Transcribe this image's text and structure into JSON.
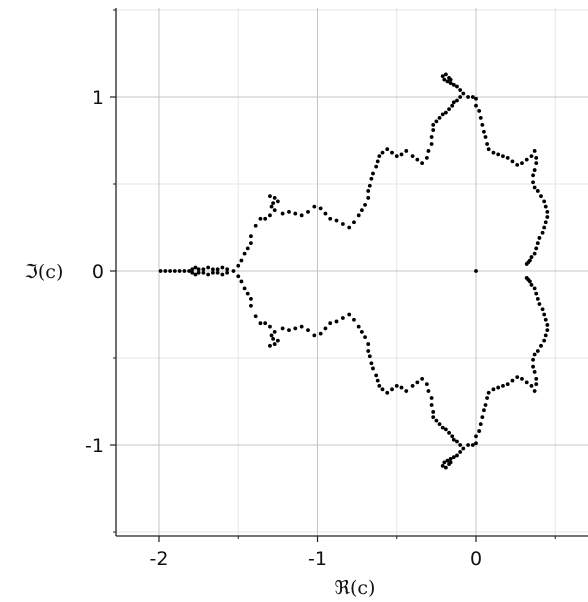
{
  "chart_data": {
    "type": "scatter",
    "title": "",
    "xlabel": "ℜ(c)",
    "ylabel": "ℑ(c)",
    "xlim": [
      -2.25,
      0.7
    ],
    "ylim": [
      -1.5,
      1.5
    ],
    "xticks": [
      -2,
      -1,
      0
    ],
    "yticks": [
      -1,
      0,
      1
    ],
    "xtick_labels": [
      "-2",
      "-1",
      "0"
    ],
    "ytick_labels": [
      "-1",
      "0",
      "1"
    ],
    "grid": true,
    "minor_grid": true,
    "point_color": "#000000",
    "description_of_points": "Scattered points tracing the boundary of the Mandelbrot set; symmetric about the real axis (each point (x, y) has a mirror (x, -y)).",
    "series": [
      {
        "values_upper_half": [
          [
            -1.99,
            0
          ],
          [
            -1.96,
            0
          ],
          [
            -1.93,
            0
          ],
          [
            -1.9,
            0
          ],
          [
            -1.87,
            0
          ],
          [
            -1.84,
            0
          ],
          [
            -1.81,
            0
          ],
          [
            -1.79,
            0.01
          ],
          [
            -1.77,
            0.02
          ],
          [
            -1.75,
            0.01
          ],
          [
            -1.72,
            0.01
          ],
          [
            -1.69,
            0.02
          ],
          [
            -1.66,
            0.01
          ],
          [
            -1.63,
            0.01
          ],
          [
            -1.6,
            0.02
          ],
          [
            -1.57,
            0.01
          ],
          [
            -1.53,
            0
          ],
          [
            -1.5,
            0.03
          ],
          [
            -1.48,
            0.06
          ],
          [
            -1.46,
            0.1
          ],
          [
            -1.44,
            0.13
          ],
          [
            -1.42,
            0.16
          ],
          [
            -1.42,
            0.2
          ],
          [
            -1.39,
            0.26
          ],
          [
            -1.36,
            0.3
          ],
          [
            -1.33,
            0.3
          ],
          [
            -1.3,
            0.32
          ],
          [
            -1.27,
            0.35
          ],
          [
            -1.28,
            0.39
          ],
          [
            -1.3,
            0.43
          ],
          [
            -1.27,
            0.42
          ],
          [
            -1.25,
            0.4
          ],
          [
            -1.29,
            0.37
          ],
          [
            -1.22,
            0.33
          ],
          [
            -1.18,
            0.34
          ],
          [
            -1.14,
            0.33
          ],
          [
            -1.1,
            0.32
          ],
          [
            -1.06,
            0.34
          ],
          [
            -1.02,
            0.37
          ],
          [
            -0.98,
            0.36
          ],
          [
            -0.95,
            0.33
          ],
          [
            -0.92,
            0.3
          ],
          [
            -0.88,
            0.29
          ],
          [
            -0.84,
            0.27
          ],
          [
            -0.8,
            0.25
          ],
          [
            -0.77,
            0.28
          ],
          [
            -0.74,
            0.32
          ],
          [
            -0.72,
            0.35
          ],
          [
            -0.7,
            0.38
          ],
          [
            -0.68,
            0.42
          ],
          [
            -0.68,
            0.46
          ],
          [
            -0.67,
            0.49
          ],
          [
            -0.66,
            0.53
          ],
          [
            -0.65,
            0.56
          ],
          [
            -0.63,
            0.6
          ],
          [
            -0.62,
            0.63
          ],
          [
            -0.61,
            0.66
          ],
          [
            -0.59,
            0.68
          ],
          [
            -0.56,
            0.7
          ],
          [
            -0.53,
            0.68
          ],
          [
            -0.5,
            0.66
          ],
          [
            -0.47,
            0.67
          ],
          [
            -0.44,
            0.69
          ],
          [
            -0.4,
            0.66
          ],
          [
            -0.37,
            0.64
          ],
          [
            -0.34,
            0.62
          ],
          [
            -0.31,
            0.65
          ],
          [
            -0.3,
            0.69
          ],
          [
            -0.28,
            0.73
          ],
          [
            -0.28,
            0.77
          ],
          [
            -0.27,
            0.81
          ],
          [
            -0.27,
            0.84
          ],
          [
            -0.25,
            0.86
          ],
          [
            -0.23,
            0.88
          ],
          [
            -0.21,
            0.9
          ],
          [
            -0.19,
            0.91
          ],
          [
            -0.17,
            0.93
          ],
          [
            -0.15,
            0.95
          ],
          [
            -0.14,
            0.97
          ],
          [
            -0.12,
            0.98
          ],
          [
            -0.1,
            1.0
          ],
          [
            -0.08,
            1.02
          ],
          [
            -0.1,
            1.04
          ],
          [
            -0.12,
            1.06
          ],
          [
            -0.14,
            1.07
          ],
          [
            -0.16,
            1.08
          ],
          [
            -0.18,
            1.09
          ],
          [
            -0.2,
            1.1
          ],
          [
            -0.21,
            1.12
          ],
          [
            -0.19,
            1.13
          ],
          [
            -0.17,
            1.11
          ],
          [
            -0.16,
            1.1
          ],
          [
            -0.05,
            1.0
          ],
          [
            -0.02,
            1.0
          ],
          [
            0.0,
            0.99
          ],
          [
            0.0,
            0.95
          ],
          [
            0.02,
            0.92
          ],
          [
            0.03,
            0.88
          ],
          [
            0.04,
            0.84
          ],
          [
            0.05,
            0.8
          ],
          [
            0.06,
            0.77
          ],
          [
            0.07,
            0.73
          ],
          [
            0.08,
            0.7
          ],
          [
            0.11,
            0.68
          ],
          [
            0.14,
            0.67
          ],
          [
            0.17,
            0.66
          ],
          [
            0.2,
            0.65
          ],
          [
            0.23,
            0.63
          ],
          [
            0.26,
            0.61
          ],
          [
            0.29,
            0.62
          ],
          [
            0.32,
            0.64
          ],
          [
            0.35,
            0.66
          ],
          [
            0.37,
            0.69
          ],
          [
            0.38,
            0.65
          ],
          [
            0.38,
            0.62
          ],
          [
            0.37,
            0.58
          ],
          [
            0.36,
            0.55
          ],
          [
            0.36,
            0.51
          ],
          [
            0.37,
            0.48
          ],
          [
            0.39,
            0.46
          ],
          [
            0.41,
            0.43
          ],
          [
            0.43,
            0.4
          ],
          [
            0.44,
            0.37
          ],
          [
            0.45,
            0.34
          ],
          [
            0.45,
            0.31
          ],
          [
            0.44,
            0.28
          ],
          [
            0.43,
            0.25
          ],
          [
            0.42,
            0.22
          ],
          [
            0.4,
            0.19
          ],
          [
            0.39,
            0.16
          ],
          [
            0.38,
            0.13
          ],
          [
            0.37,
            0.1
          ],
          [
            0.35,
            0.08
          ],
          [
            0.34,
            0.06
          ],
          [
            0.33,
            0.05
          ],
          [
            0.32,
            0.04
          ],
          [
            0.0,
            0.0
          ]
        ]
      }
    ]
  },
  "svg_label": "Mandelbrot set boundary scatter plot"
}
